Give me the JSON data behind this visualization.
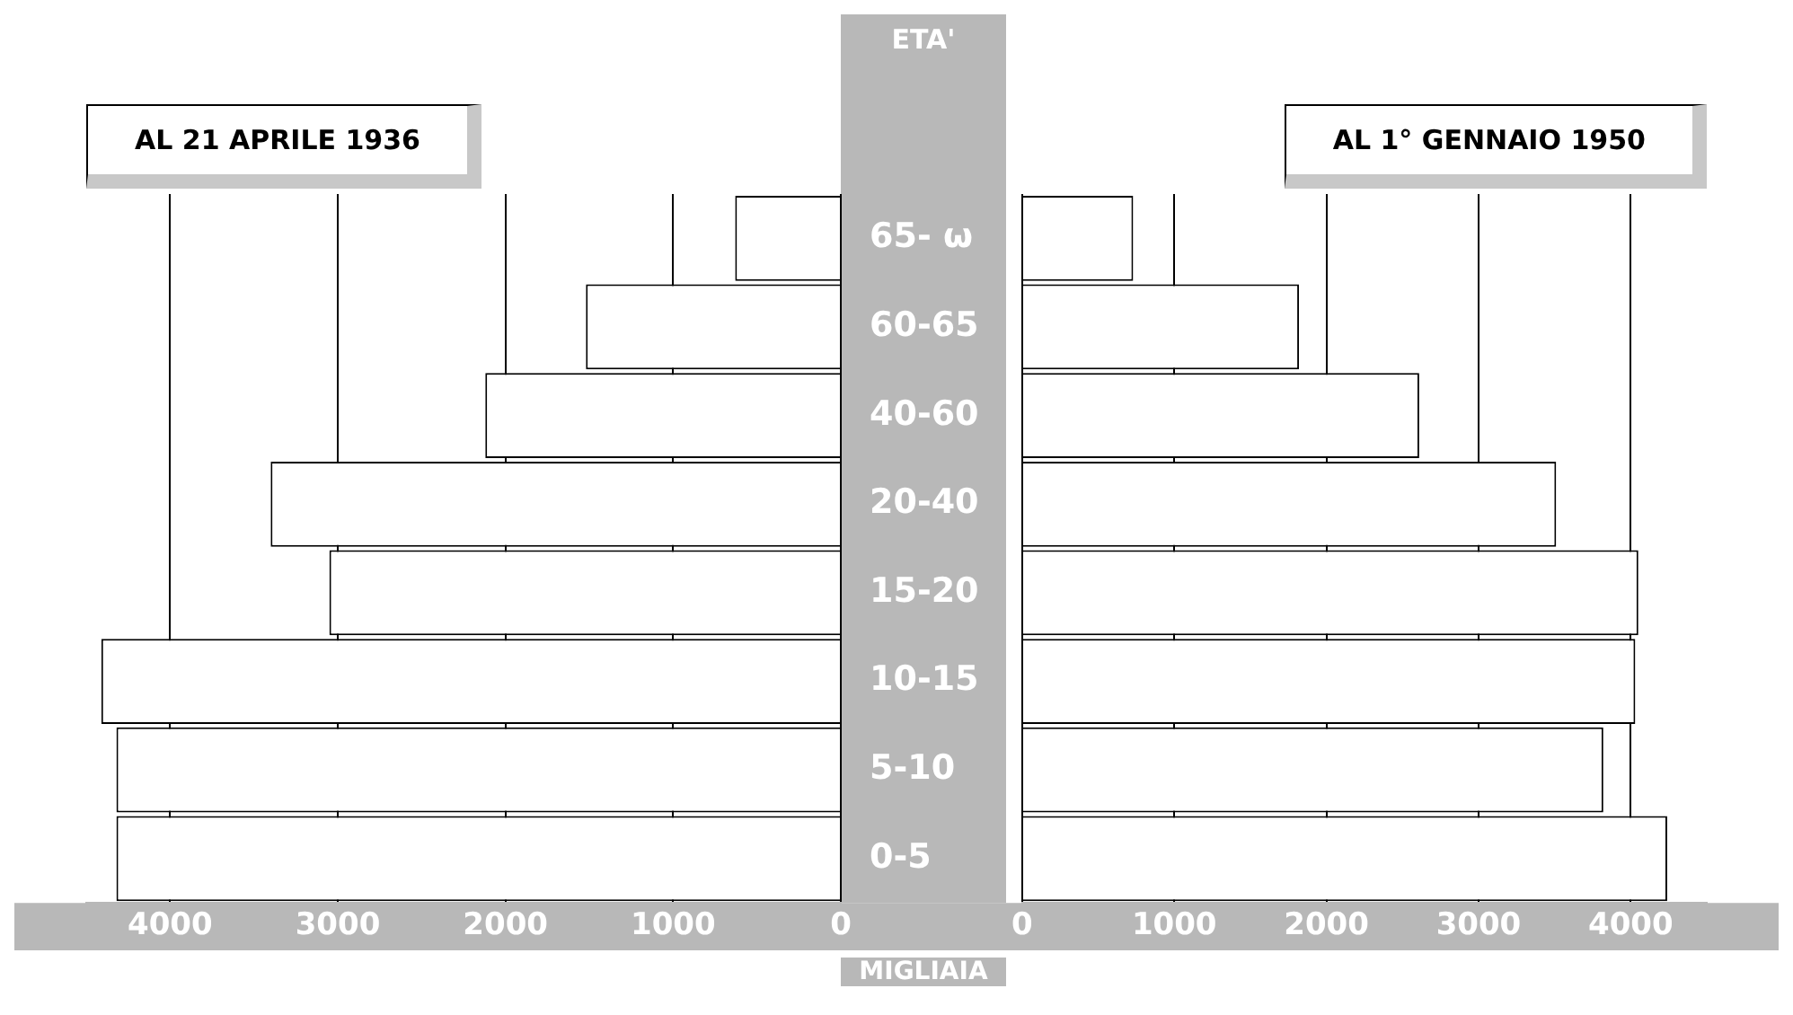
{
  "chart_data": [
    {
      "type": "bar",
      "orientation": "horizontal",
      "title": "AL 21 APRILE 1936",
      "ylabel": "ETA'",
      "xlabel": "MIGLIAIA",
      "categories": [
        "65- ω",
        "60-65",
        "40-60",
        "20-40",
        "15-20",
        "10-15",
        "5-10",
        "0-5"
      ],
      "series": [
        {
          "color": "#ffffff",
          "values": [
            630,
            1520,
            2120,
            3400,
            3050,
            4410,
            4320,
            4320
          ]
        }
      ],
      "xlim": [
        4500,
        0
      ],
      "xticks": [
        4000,
        3000,
        2000,
        1000,
        0
      ],
      "grid": "x",
      "legend": false
    },
    {
      "type": "bar",
      "orientation": "horizontal",
      "title": "AL 1° GENNAIO 1950",
      "categories": [
        "65- ω",
        "60-65",
        "40-60",
        "20-40",
        "15-20",
        "10-15",
        "5-10",
        "0-5"
      ],
      "series": [
        {
          "color": "#ffffff",
          "values": [
            730,
            1820,
            2610,
            3510,
            4050,
            4030,
            3820,
            4240
          ]
        }
      ],
      "xlim": [
        0,
        4500
      ],
      "xticks": [
        0,
        1000,
        2000,
        3000,
        4000
      ],
      "grid": "x",
      "legend": false,
      "tick_labels": "x"
    }
  ]
}
